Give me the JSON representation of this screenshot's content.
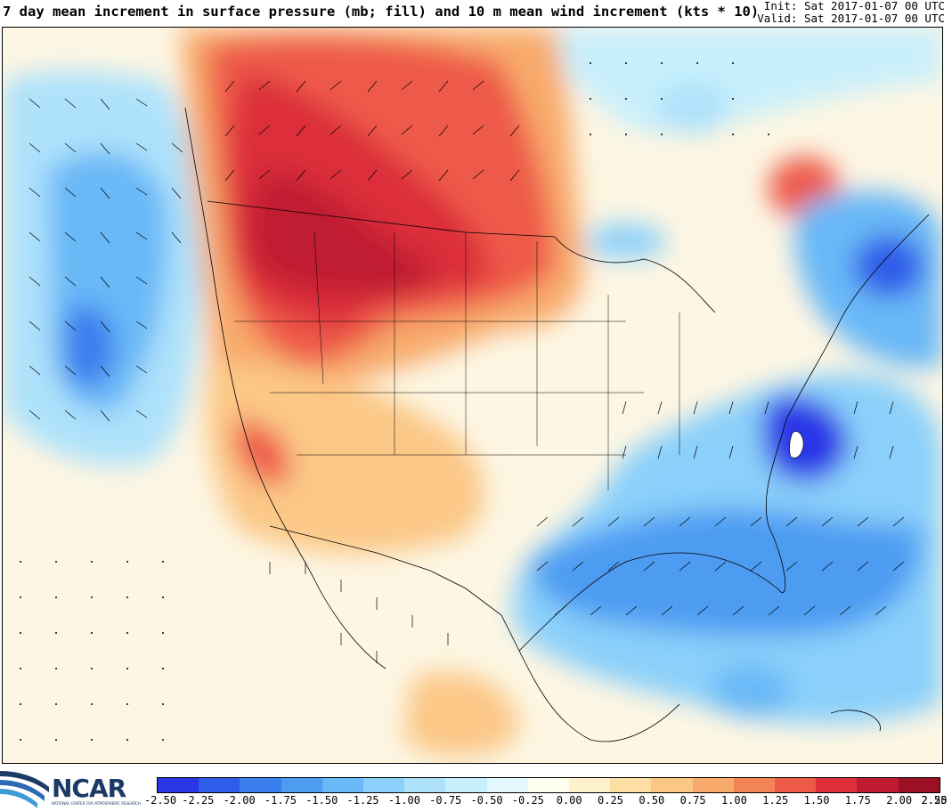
{
  "header": {
    "title": "7 day mean increment in surface pressure (mb; fill) and 10 m mean wind increment (kts * 10)",
    "init": "Init: Sat 2017-01-07 00 UTC",
    "valid": "Valid: Sat 2017-01-07 00 UTC"
  },
  "logo": {
    "text": "NCAR",
    "subtext": "NATIONAL CENTER FOR ATMOSPHERIC RESEARCH"
  },
  "colorbar": {
    "labels": [
      "-2.50",
      "-2.25",
      "-2.00",
      "-1.75",
      "-1.50",
      "-1.25",
      "-1.00",
      "-0.75",
      "-0.50",
      "-0.25",
      "0.00",
      "0.25",
      "0.50",
      "0.75",
      "1.00",
      "1.25",
      "1.50",
      "1.75",
      "2.00",
      "2.25",
      "2.50"
    ],
    "colors": [
      "#2a36e6",
      "#2f5ce8",
      "#3a7ded",
      "#4e9cf2",
      "#69b8f7",
      "#8bd0fa",
      "#aee2fb",
      "#c8effc",
      "#e3f8fd",
      "#fefeee",
      "#fef2cc",
      "#fddfa4",
      "#fbc786",
      "#f8aa6c",
      "#f38458",
      "#ee5a48",
      "#dc2f3a",
      "#c01a30",
      "#9c1025"
    ]
  }
}
